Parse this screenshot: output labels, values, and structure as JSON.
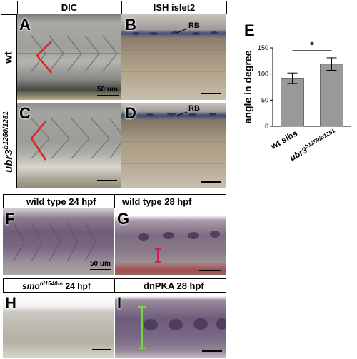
{
  "top_headers": {
    "dic": "DIC",
    "ish": "ISH islet2"
  },
  "row_labels": {
    "wt": "wt",
    "mutant_base": "ubr3",
    "mutant_sup": "b1250/1251"
  },
  "panels": {
    "A": {
      "letter": "A",
      "scale": "50 um"
    },
    "B": {
      "letter": "B",
      "annotation": "RB"
    },
    "C": {
      "letter": "C"
    },
    "D": {
      "letter": "D",
      "annotation": "RB"
    },
    "F": {
      "letter": "F",
      "header": "wild type 24 hpf",
      "scale": "50 um"
    },
    "G": {
      "letter": "G",
      "header": "wild type 28 hpf"
    },
    "H": {
      "letter": "H",
      "header_base": "smo",
      "header_sup": "hi1640-/-",
      "header_rest": " 24 hpf"
    },
    "I": {
      "letter": "I",
      "header": "dnPKA 28 hpf"
    }
  },
  "chart_data": {
    "type": "bar",
    "letter": "E",
    "categories": [
      "wt sibs",
      "ubr3"
    ],
    "category_sup": [
      "",
      "b1250/b1251"
    ],
    "values": [
      92,
      119
    ],
    "errors": [
      10,
      12
    ],
    "ylabel": "angle in degree",
    "ylim": [
      0,
      150
    ],
    "yticks": [
      0,
      50,
      100,
      150
    ],
    "significance": "*",
    "bar_color": "#999999",
    "grid": false
  }
}
